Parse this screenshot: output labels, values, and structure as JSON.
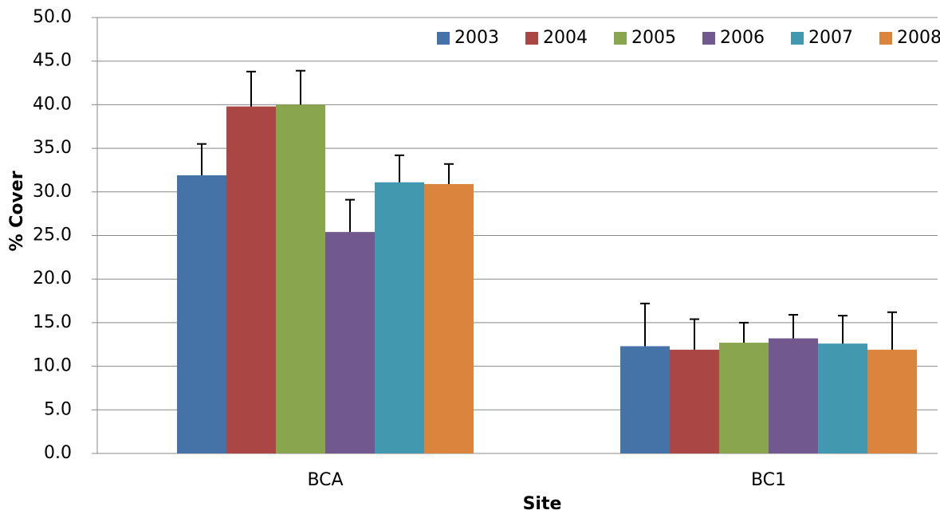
{
  "chart_data": {
    "type": "bar",
    "x_label": "Site",
    "y_label": "% Cover",
    "categories": [
      "BCA",
      "BC1"
    ],
    "series": [
      {
        "name": "2003",
        "color": "#4572a7",
        "values": [
          31.9,
          12.3
        ],
        "errors": [
          3.6,
          4.9
        ]
      },
      {
        "name": "2004",
        "color": "#aa4643",
        "values": [
          39.8,
          11.9
        ],
        "errors": [
          4.0,
          3.5
        ]
      },
      {
        "name": "2005",
        "color": "#89a54e",
        "values": [
          40.0,
          12.7
        ],
        "errors": [
          3.9,
          2.3
        ]
      },
      {
        "name": "2006",
        "color": "#71588f",
        "values": [
          25.4,
          13.2
        ],
        "errors": [
          3.7,
          2.7
        ]
      },
      {
        "name": "2007",
        "color": "#4198af",
        "values": [
          31.1,
          12.6
        ],
        "errors": [
          3.1,
          3.2
        ]
      },
      {
        "name": "2008",
        "color": "#db843d",
        "values": [
          30.9,
          11.9
        ],
        "errors": [
          2.3,
          4.3
        ]
      }
    ],
    "ylim": [
      0,
      50
    ],
    "yticks": [
      {
        "value": 0,
        "label": "0.0"
      },
      {
        "value": 5,
        "label": "5.0"
      },
      {
        "value": 10,
        "label": "10.0"
      },
      {
        "value": 15,
        "label": "15.0"
      },
      {
        "value": 20,
        "label": "20.0"
      },
      {
        "value": 25,
        "label": "25.0"
      },
      {
        "value": 30,
        "label": "30.0"
      },
      {
        "value": 35,
        "label": "35.0"
      },
      {
        "value": 40,
        "label": "40.0"
      },
      {
        "value": 45,
        "label": "45.0"
      },
      {
        "value": 50,
        "label": "50.0"
      }
    ],
    "grid": true,
    "legend": "top-right"
  }
}
